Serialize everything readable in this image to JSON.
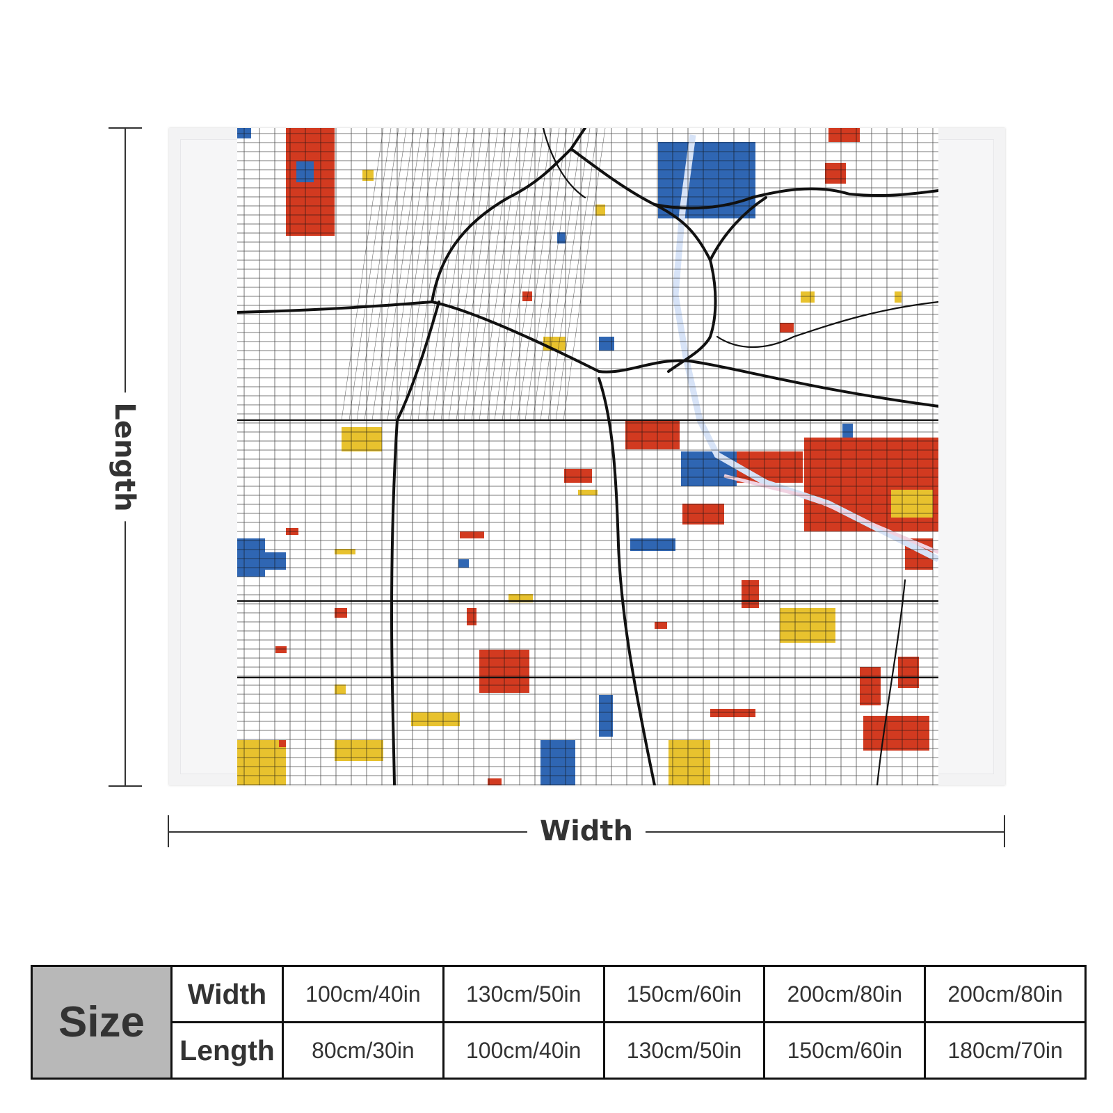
{
  "dimensions": {
    "length_label": "Length",
    "width_label": "Width"
  },
  "map_colors": {
    "red": "#d23a20",
    "blue": "#2f66b3",
    "yellow": "#e8c22e",
    "road": "#111111"
  },
  "size_table": {
    "header": "Size",
    "rows": [
      {
        "label": "Width",
        "values": [
          "100cm/40in",
          "130cm/50in",
          "150cm/60in",
          "200cm/80in",
          "200cm/80in"
        ]
      },
      {
        "label": "Length",
        "values": [
          "80cm/30in",
          "100cm/40in",
          "130cm/50in",
          "150cm/60in",
          "180cm/70in"
        ]
      }
    ]
  }
}
